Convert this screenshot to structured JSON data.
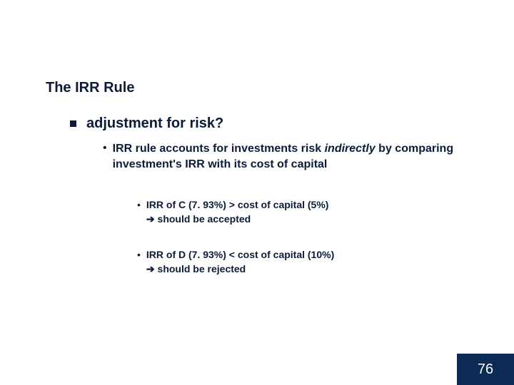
{
  "slide": {
    "title": "The IRR Rule",
    "main_bullet": "adjustment for risk?",
    "sub1_prefix": "IRR rule accounts for investments risk ",
    "sub1_italic": "indirectly",
    "sub1_suffix": " by comparing investment's IRR with its cost of capital",
    "sub2a_line1": "IRR of C (7. 93%) > cost of capital (5%)",
    "sub2a_line2": "should be accepted",
    "sub2b_line1": "IRR of D (7. 93%) < cost of capital (10%)",
    "sub2b_line2": "should be rejected",
    "arrow_glyph": "➔",
    "page_number": "76"
  },
  "colors": {
    "text": "#0b1b38",
    "footer_bg": "#0b2b55",
    "footer_text": "#ffffff",
    "background": "#ffffff"
  }
}
